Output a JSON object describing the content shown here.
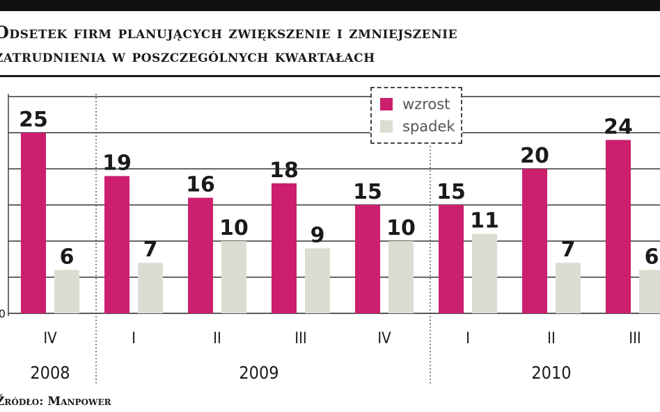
{
  "title_line1": "Odsetek firm planujących zwiększenie i zmniejszenie",
  "title_line2": "zatrudnienia w poszczególnych kwartałach",
  "source": "Źródło: Manpower",
  "colors": {
    "wzrost": "#cc1f6e",
    "spadek": "#dddcd2"
  },
  "chart_data": {
    "type": "bar",
    "title": "Odsetek firm planujących zwiększenie i zmniejszenie zatrudnienia w poszczególnych kwartałach",
    "categories": [
      "IV",
      "I",
      "II",
      "III",
      "IV",
      "I",
      "II",
      "III"
    ],
    "groups": [
      {
        "label": "2008",
        "categories": [
          "IV"
        ]
      },
      {
        "label": "2009",
        "categories": [
          "I",
          "II",
          "III",
          "IV"
        ]
      },
      {
        "label": "2010",
        "categories": [
          "I",
          "II",
          "III"
        ]
      }
    ],
    "series": [
      {
        "name": "wzrost",
        "values": [
          25,
          19,
          16,
          18,
          15,
          15,
          20,
          24
        ]
      },
      {
        "name": "spadek",
        "values": [
          6,
          7,
          10,
          9,
          10,
          11,
          7,
          6
        ]
      }
    ],
    "y_tick_labels": [
      "0"
    ],
    "ylim": [
      0,
      30
    ],
    "grid": true,
    "legend": "top-center"
  }
}
